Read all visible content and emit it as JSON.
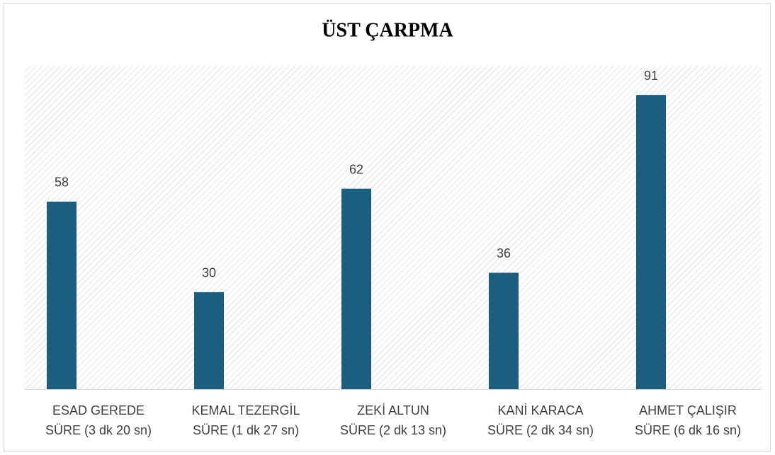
{
  "chart_data": {
    "type": "bar",
    "title": "ÜST ÇARPMA",
    "categories": [
      [
        "ESAD GEREDE",
        "SÜRE (3 dk 20 sn)"
      ],
      [
        "KEMAL TEZERGİL",
        "SÜRE (1 dk 27 sn)"
      ],
      [
        "ZEKİ ALTUN",
        "SÜRE (2 dk 13 sn)"
      ],
      [
        "KANİ KARACA",
        "SÜRE (2 dk 34 sn)"
      ],
      [
        "AHMET ÇALIŞIR",
        "SÜRE (6 dk 16 sn)"
      ]
    ],
    "values": [
      58,
      30,
      62,
      36,
      91
    ],
    "color": "#1a5e80",
    "ylim": [
      0,
      100
    ]
  }
}
